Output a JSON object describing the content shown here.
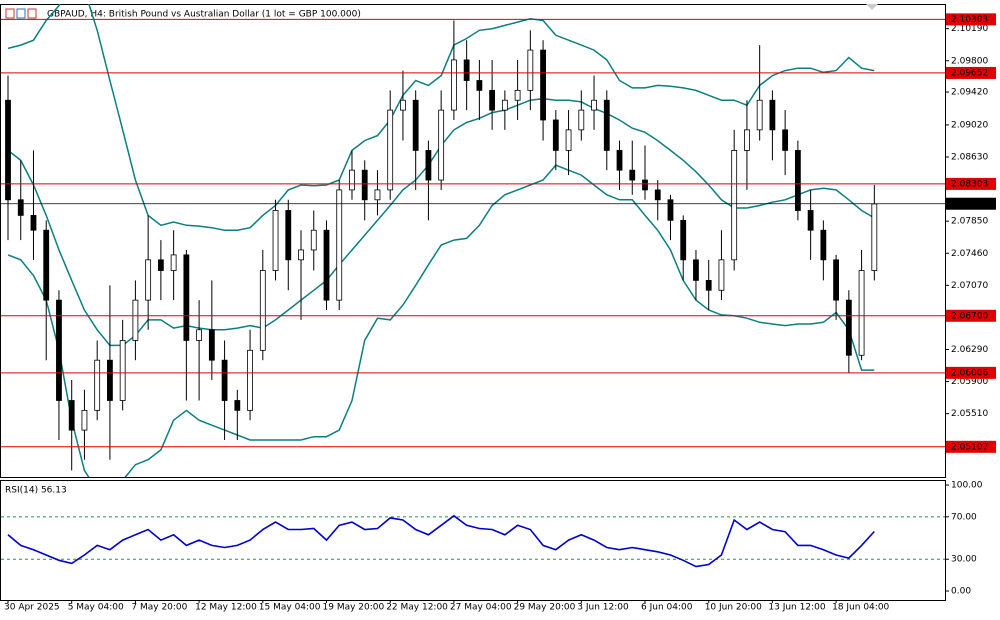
{
  "chart_data": [
    {
      "type": "candlestick",
      "title": "GBPAUD, H4:  British Pound vs Australian Dollar (1 lot = GBP 100.000)",
      "categories": [
        "30 Apr 2025",
        null,
        null,
        null,
        null,
        "5 May 04:00",
        null,
        null,
        null,
        null,
        "7 May 20:00",
        null,
        null,
        null,
        null,
        "12 May 12:00",
        null,
        null,
        null,
        null,
        "15 May 04:00",
        null,
        null,
        null,
        null,
        "19 May 20:00",
        null,
        null,
        null,
        null,
        "22 May 12:00",
        null,
        null,
        null,
        null,
        "27 May 04:00",
        null,
        null,
        null,
        null,
        "29 May 20:00",
        null,
        null,
        null,
        null,
        "3 Jun 12:00",
        null,
        null,
        null,
        null,
        "6 Jun 04:00",
        null,
        null,
        null,
        null,
        "10 Jun 20:00",
        null,
        null,
        null,
        null,
        "13 Jun 12:00",
        null,
        null,
        null,
        null,
        "18 Jun 04:00",
        null,
        null,
        null
      ],
      "open": [
        2.0932,
        2.0811,
        2.0792,
        2.0774,
        2.0689,
        2.0567,
        2.0531,
        2.0555,
        2.0616,
        2.0567,
        2.064,
        2.0689,
        2.0738,
        2.0725,
        2.0744,
        2.064,
        2.0653,
        2.0616,
        2.0567,
        2.0555,
        2.0628,
        2.0725,
        2.0798,
        2.0738,
        2.075,
        2.0774,
        2.0689,
        2.0823,
        2.0847,
        2.0811,
        2.0823,
        2.092,
        2.0932,
        2.0871,
        2.0835,
        2.092,
        2.0981,
        2.0956,
        2.0944,
        2.092,
        2.0932,
        2.0944,
        2.0993,
        2.0908,
        2.0871,
        2.0896,
        2.092,
        2.0932,
        2.0871,
        2.0847,
        2.0835,
        2.0823,
        2.0811,
        2.0786,
        2.0738,
        2.0713,
        2.0701,
        2.0738,
        2.0871,
        2.0896,
        2.0932,
        2.0896,
        2.0871,
        2.0798,
        2.0774,
        2.0738,
        2.0689,
        2.0622,
        2.0725
      ],
      "high": [
        2.0962,
        2.0859,
        2.0871,
        2.0786,
        2.0701,
        2.0592,
        2.058,
        2.064,
        2.0707,
        2.0665,
        2.0713,
        2.0792,
        2.0762,
        2.0774,
        2.075,
        2.0689,
        2.0713,
        2.064,
        2.058,
        2.0653,
        2.075,
        2.0811,
        2.0811,
        2.0774,
        2.0798,
        2.0786,
        2.0835,
        2.0871,
        2.0859,
        2.0847,
        2.0944,
        2.0968,
        2.0944,
        2.0883,
        2.0944,
        2.1029,
        2.1005,
        2.0981,
        2.0981,
        2.0944,
        2.0981,
        2.1017,
        2.1005,
        2.092,
        2.092,
        2.0944,
        2.0962,
        2.0944,
        2.0883,
        2.0883,
        2.0877,
        2.0835,
        2.0817,
        2.0792,
        2.075,
        2.0738,
        2.0774,
        2.0896,
        2.0932,
        2.0999,
        2.0944,
        2.092,
        2.0883,
        2.0823,
        2.0786,
        2.0744,
        2.0701,
        2.075,
        2.0829
      ],
      "low": [
        2.0762,
        2.0762,
        2.0738,
        2.0616,
        2.0519,
        2.0482,
        2.0495,
        2.0543,
        2.0495,
        2.0555,
        2.0616,
        2.0653,
        2.0689,
        2.0689,
        2.0567,
        2.0567,
        2.0592,
        2.0519,
        2.0519,
        2.0543,
        2.0616,
        2.0713,
        2.0701,
        2.0665,
        2.0725,
        2.0677,
        2.0677,
        2.0811,
        2.0786,
        2.0792,
        2.0811,
        2.0883,
        2.0823,
        2.0786,
        2.0823,
        2.0908,
        2.092,
        2.0908,
        2.0896,
        2.0896,
        2.0908,
        2.092,
        2.0883,
        2.0847,
        2.0841,
        2.0883,
        2.0896,
        2.0847,
        2.0823,
        2.0817,
        2.0811,
        2.0786,
        2.0762,
        2.0713,
        2.0689,
        2.0677,
        2.0689,
        2.0725,
        2.0823,
        2.0883,
        2.0859,
        2.0841,
        2.0786,
        2.0738,
        2.0713,
        2.0665,
        2.0601,
        2.0616,
        2.0713
      ],
      "close": [
        2.0811,
        2.0792,
        2.0774,
        2.0689,
        2.0567,
        2.0531,
        2.0555,
        2.0616,
        2.0567,
        2.064,
        2.0689,
        2.0738,
        2.0725,
        2.0744,
        2.064,
        2.0653,
        2.0616,
        2.0567,
        2.0555,
        2.0628,
        2.0725,
        2.0798,
        2.0738,
        2.075,
        2.0774,
        2.0689,
        2.0823,
        2.0847,
        2.0811,
        2.0823,
        2.092,
        2.0932,
        2.0871,
        2.0835,
        2.092,
        2.0981,
        2.0956,
        2.0944,
        2.092,
        2.0932,
        2.0944,
        2.0993,
        2.0908,
        2.0871,
        2.0896,
        2.092,
        2.0932,
        2.0871,
        2.0847,
        2.0835,
        2.0823,
        2.0811,
        2.0786,
        2.0738,
        2.0713,
        2.0701,
        2.0738,
        2.0871,
        2.0896,
        2.0932,
        2.0896,
        2.0871,
        2.0798,
        2.0774,
        2.0738,
        2.0689,
        2.0622,
        2.0725,
        2.0806
      ],
      "bands": [
        {
          "color": "#0b7f80",
          "values": [
            2.0995,
            2.0999,
            2.1005,
            2.1029,
            2.1047,
            2.1078,
            2.1066,
            2.1017,
            2.0956,
            2.0896,
            2.0835,
            2.0792,
            2.078,
            2.0784,
            2.078,
            2.0779,
            2.0777,
            2.0774,
            2.0774,
            2.0777,
            2.0792,
            2.0804,
            2.0823,
            2.0829,
            2.0828,
            2.0829,
            2.0835,
            2.0871,
            2.0883,
            2.0889,
            2.0908,
            2.0938,
            2.0956,
            2.095,
            2.0962,
            2.0999,
            2.1007,
            2.1017,
            2.1019,
            2.1023,
            2.1027,
            2.1031,
            2.1029,
            2.1011,
            2.1005,
            2.0999,
            2.0993,
            2.0981,
            2.0956,
            2.0947,
            2.0947,
            2.095,
            2.0949,
            2.0947,
            2.0944,
            2.0938,
            2.0932,
            2.0932,
            2.0926,
            2.095,
            2.0962,
            2.0968,
            2.0971,
            2.0971,
            2.0966,
            2.0968,
            2.0984,
            2.0971,
            2.0968
          ]
        },
        {
          "color": "#0b7f80",
          "values": [
            2.0871,
            2.0859,
            2.0829,
            2.0792,
            2.075,
            2.0713,
            2.0677,
            2.0653,
            2.0634,
            2.0634,
            2.0646,
            2.0665,
            2.0665,
            2.0655,
            2.0658,
            2.0655,
            2.0653,
            2.0653,
            2.0655,
            2.0658,
            2.0655,
            2.0665,
            2.0677,
            2.0689,
            2.0701,
            2.0713,
            2.0732,
            2.075,
            2.0768,
            2.0786,
            2.0804,
            2.0823,
            2.0835,
            2.0853,
            2.0877,
            2.0896,
            2.0905,
            2.091,
            2.0917,
            2.092,
            2.0926,
            2.0932,
            2.0934,
            2.0932,
            2.0932,
            2.093,
            2.0922,
            2.0916,
            2.0908,
            2.0898,
            2.0893,
            2.0883,
            2.0871,
            2.0859,
            2.0845,
            2.0829,
            2.0811,
            2.0801,
            2.0801,
            2.0804,
            2.0808,
            2.0811,
            2.0817,
            2.0823,
            2.0825,
            2.0823,
            2.0811,
            2.0798,
            2.0789
          ]
        },
        {
          "color": "#0b7f80",
          "values": [
            2.0744,
            2.0738,
            2.0719,
            2.0689,
            2.0628,
            2.0543,
            2.0482,
            2.0458,
            2.0458,
            2.047,
            2.0489,
            2.0495,
            2.0507,
            2.0543,
            2.0555,
            2.0543,
            2.0537,
            2.0531,
            2.0525,
            2.0519,
            2.0519,
            2.0519,
            2.0519,
            2.0519,
            2.0523,
            2.0523,
            2.0531,
            2.0567,
            2.064,
            2.0667,
            2.0665,
            2.0683,
            2.0707,
            2.0732,
            2.0756,
            2.0762,
            2.0764,
            2.078,
            2.0804,
            2.0817,
            2.0823,
            2.0829,
            2.0835,
            2.0853,
            2.0847,
            2.0841,
            2.0829,
            2.0817,
            2.0811,
            2.0811,
            2.0792,
            2.0774,
            2.075,
            2.0713,
            2.0689,
            2.0677,
            2.0671,
            2.067,
            2.0667,
            2.0662,
            2.066,
            2.0658,
            2.066,
            2.066,
            2.0662,
            2.0674,
            2.0653,
            2.0604,
            2.0604
          ]
        }
      ],
      "levels": [
        2.10303,
        2.09652,
        2.08303,
        {
          "value": 2.067,
          "label": "2.06700"
        },
        2.06006,
        2.05107
      ],
      "level_color": "#e00000",
      "current_price": 2.08062,
      "ylim": [
        2.0474,
        2.1049
      ],
      "yticks": [
        {
          "value": 2.1019,
          "label": "2.10190"
        },
        {
          "value": 2.098,
          "label": "2.09800"
        },
        {
          "value": 2.0942,
          "label": "2.09420"
        },
        {
          "value": 2.0902,
          "label": "2.09020"
        },
        {
          "value": 2.0863,
          "label": "2.08630"
        },
        {
          "value": 2.0785,
          "label": "2.07850"
        },
        {
          "value": 2.0746,
          "label": "2.07460"
        },
        {
          "value": 2.0707,
          "label": "2.07070"
        },
        {
          "value": 2.0629,
          "label": "2.06290"
        },
        {
          "value": 2.059,
          "label": "2.05900"
        },
        {
          "value": 2.0551,
          "label": "2.05510"
        }
      ]
    },
    {
      "type": "line",
      "title": "RSI(14) 56.13",
      "color": "#0000cd",
      "values": [
        53,
        43,
        39,
        34,
        29,
        26,
        34,
        43,
        39,
        48,
        53,
        58,
        48,
        53,
        43,
        48,
        43,
        41,
        43,
        48,
        58,
        65,
        58,
        58,
        59,
        48,
        62,
        65,
        58,
        59,
        69,
        67,
        58,
        53,
        62,
        71,
        62,
        59,
        58,
        53,
        62,
        58,
        43,
        39,
        48,
        53,
        48,
        41,
        39,
        41,
        39,
        37,
        34,
        29,
        23,
        25,
        34,
        67,
        58,
        65,
        58,
        56,
        43,
        43,
        39,
        34,
        31,
        43,
        56.13
      ],
      "levels": [
        70,
        30
      ],
      "level_color": "#2e8b57",
      "ylim": [
        -8.5,
        103.8
      ],
      "yticks": [
        {
          "value": 100,
          "label": "100.00"
        },
        {
          "value": 70,
          "label": "70.00"
        },
        {
          "value": 30,
          "label": "30.00"
        },
        {
          "value": 0,
          "label": "0.00"
        }
      ]
    }
  ]
}
